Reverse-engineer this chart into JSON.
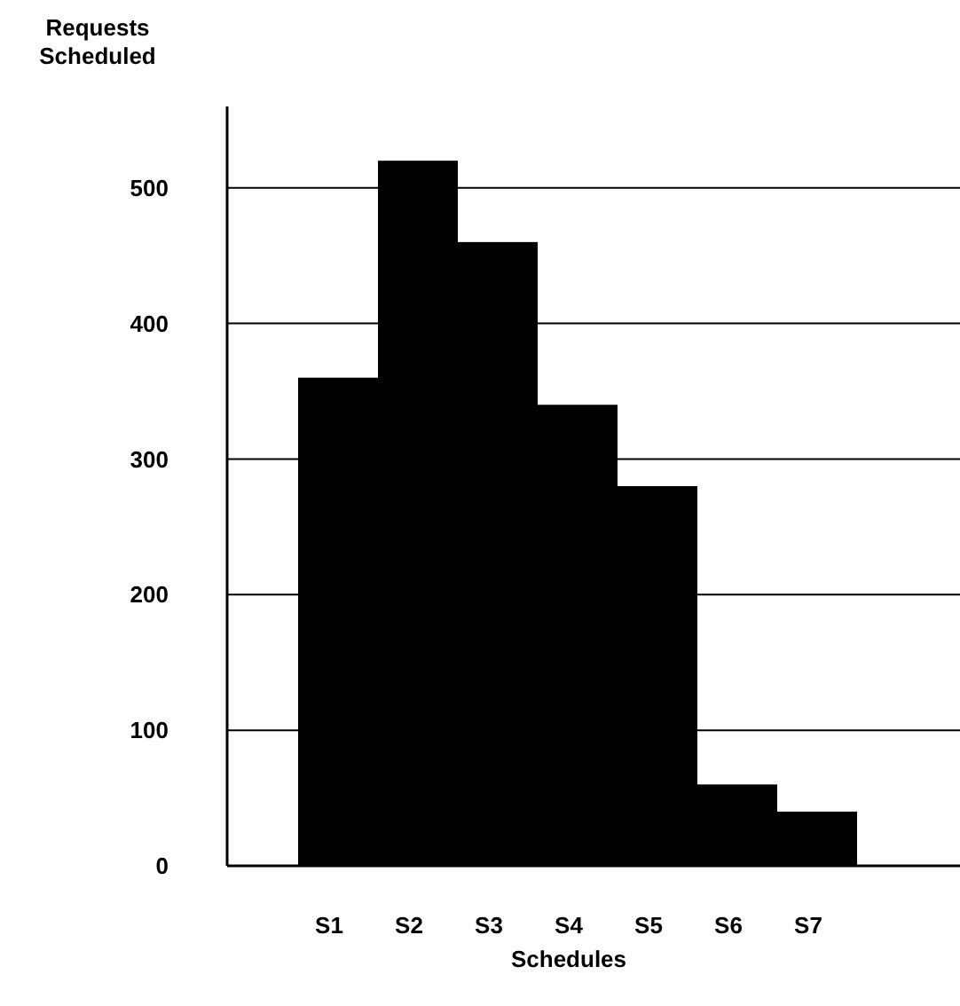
{
  "chart_data": {
    "type": "bar",
    "ylabel": "Requests\nScheduled",
    "xlabel": "Schedules",
    "categories": [
      "S1",
      "S2",
      "S3",
      "S4",
      "S5",
      "S6",
      "S7"
    ],
    "values": [
      360,
      520,
      460,
      340,
      280,
      60,
      40
    ],
    "color": "#000000",
    "ylim": [
      0,
      560
    ],
    "yticks": [
      0,
      100,
      200,
      300,
      400,
      500
    ],
    "grid": "y"
  }
}
